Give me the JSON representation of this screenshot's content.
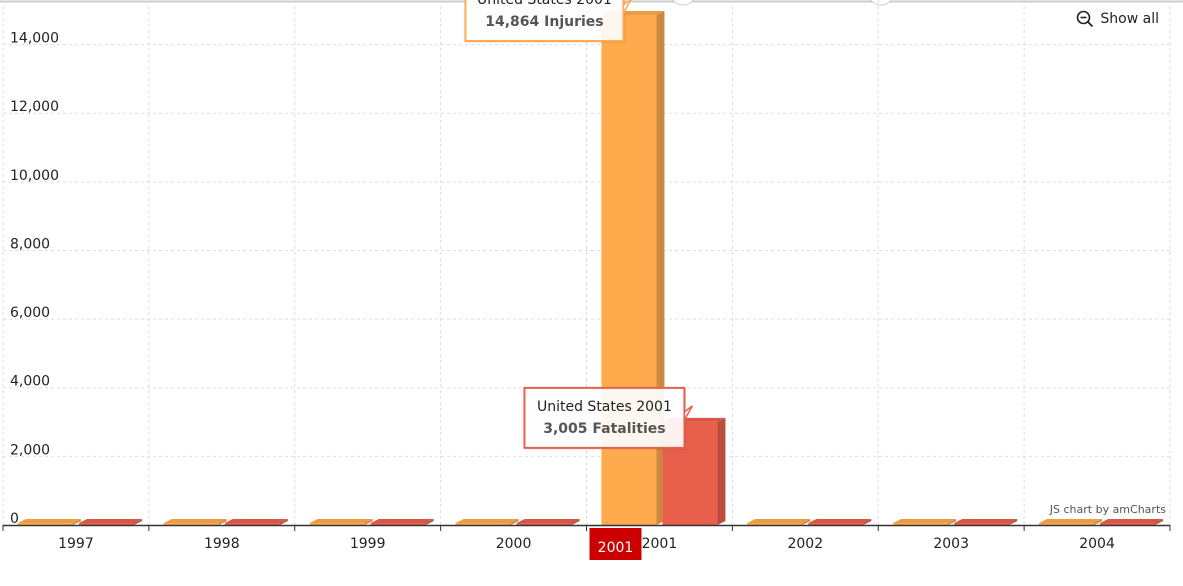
{
  "chart_data": {
    "type": "bar",
    "categories": [
      "1997",
      "1998",
      "1999",
      "2000",
      "2001",
      "2002",
      "2003",
      "2004"
    ],
    "series": [
      {
        "name": "Injuries",
        "color": "#FFAA4D",
        "values": [
          30,
          10,
          40,
          15,
          14864,
          10,
          10,
          10
        ]
      },
      {
        "name": "Fatalities",
        "color": "#E8604C",
        "values": [
          20,
          10,
          60,
          10,
          3005,
          15,
          15,
          15
        ]
      }
    ],
    "ylim": [
      0,
      15300
    ],
    "yticks": [
      0,
      2000,
      4000,
      6000,
      8000,
      10000,
      12000,
      14000
    ],
    "ytick_labels": [
      "0",
      "2,000",
      "4,000",
      "6,000",
      "8,000",
      "10,000",
      "12,000",
      "14,000"
    ],
    "grid": true,
    "highlighted_category": "2001",
    "tooltips": [
      {
        "title": "United States 2001",
        "value_text": "14,864 Injuries",
        "border": "#FFAA4D",
        "series_index": 0,
        "category_index": 4
      },
      {
        "title": "United States 2001",
        "value_text": "3,005 Fatalities",
        "border": "#E8604C",
        "series_index": 1,
        "category_index": 4
      }
    ]
  },
  "controls": {
    "show_all_label": "Show all",
    "show_all_icon": "zoom-out-icon"
  },
  "credit": "JS chart by amCharts",
  "colors": {
    "highlight_bg": "#CC0000",
    "grid": "#dddddd",
    "axis": "#333333"
  }
}
